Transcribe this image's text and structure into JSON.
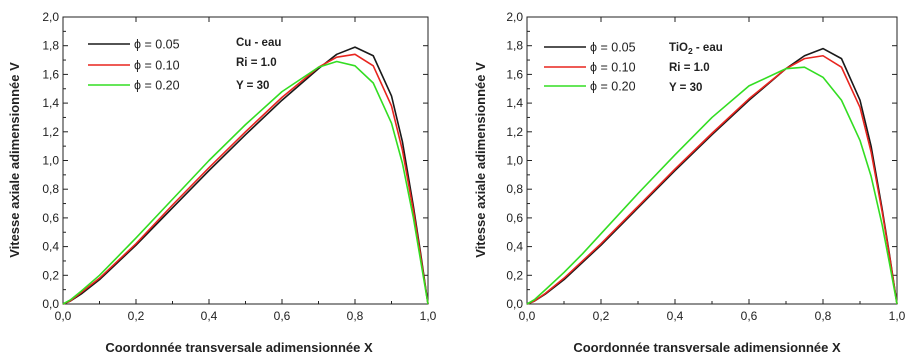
{
  "chart_data": [
    {
      "type": "line",
      "xlabel": "Coordonnée transversale adimensionnée  X",
      "ylabel": "Vitesse axiale adimensionnée  V",
      "xlim": [
        0.0,
        1.0
      ],
      "ylim": [
        0.0,
        2.0
      ],
      "x_ticks": [
        "0,0",
        "0,2",
        "0,4",
        "0,6",
        "0,8",
        "1,0"
      ],
      "y_ticks": [
        "0,0",
        "0,2",
        "0,4",
        "0,6",
        "0,8",
        "1,0",
        "1,2",
        "1,4",
        "1,6",
        "1,8",
        "2,0"
      ],
      "annotations": [
        "Cu - eau",
        "Ri = 1.0",
        "Y = 30"
      ],
      "legend_position": "top-left",
      "series": [
        {
          "name": "ϕ = 0.05",
          "color": "#1a1a1a",
          "x": [
            0,
            0.02,
            0.05,
            0.1,
            0.15,
            0.2,
            0.3,
            0.4,
            0.5,
            0.6,
            0.7,
            0.75,
            0.8,
            0.85,
            0.9,
            0.93,
            0.96,
            0.98,
            1.0
          ],
          "y": [
            0,
            0.02,
            0.07,
            0.17,
            0.29,
            0.41,
            0.67,
            0.93,
            1.18,
            1.42,
            1.64,
            1.74,
            1.79,
            1.73,
            1.45,
            1.13,
            0.68,
            0.35,
            0
          ]
        },
        {
          "name": "ϕ = 0.10",
          "color": "#e8251f",
          "x": [
            0,
            0.02,
            0.05,
            0.1,
            0.15,
            0.2,
            0.3,
            0.4,
            0.5,
            0.6,
            0.7,
            0.75,
            0.8,
            0.85,
            0.9,
            0.93,
            0.96,
            0.98,
            1.0
          ],
          "y": [
            0,
            0.022,
            0.08,
            0.18,
            0.3,
            0.42,
            0.69,
            0.95,
            1.2,
            1.44,
            1.65,
            1.72,
            1.74,
            1.66,
            1.38,
            1.07,
            0.65,
            0.33,
            0
          ]
        },
        {
          "name": "ϕ = 0.20",
          "color": "#33dd22",
          "x": [
            0,
            0.02,
            0.05,
            0.1,
            0.15,
            0.2,
            0.3,
            0.4,
            0.5,
            0.6,
            0.7,
            0.75,
            0.8,
            0.85,
            0.9,
            0.93,
            0.96,
            0.98,
            1.0
          ],
          "y": [
            0,
            0.028,
            0.09,
            0.2,
            0.33,
            0.46,
            0.73,
            1.0,
            1.25,
            1.48,
            1.65,
            1.69,
            1.66,
            1.54,
            1.26,
            0.98,
            0.6,
            0.3,
            0
          ]
        }
      ]
    },
    {
      "type": "line",
      "xlabel": "Coordonnée transversale adimensionnée  X",
      "ylabel": "Vitesse axiale adimensionnée  V",
      "xlim": [
        0.0,
        1.0
      ],
      "ylim": [
        0.0,
        2.0
      ],
      "x_ticks": [
        "0,0",
        "0,2",
        "0,4",
        "0,6",
        "0,8",
        "1,0"
      ],
      "y_ticks": [
        "0,0",
        "0,2",
        "0,4",
        "0,6",
        "0,8",
        "1,0",
        "1,2",
        "1,4",
        "1,6",
        "1,8",
        "2,0"
      ],
      "annotations": [
        "TiO",
        "2",
        " - eau",
        "Ri = 1.0",
        "Y = 30"
      ],
      "legend_position": "top-left",
      "series": [
        {
          "name": "ϕ = 0.05",
          "color": "#1a1a1a",
          "x": [
            0,
            0.02,
            0.05,
            0.1,
            0.15,
            0.2,
            0.3,
            0.4,
            0.5,
            0.6,
            0.7,
            0.75,
            0.8,
            0.85,
            0.9,
            0.93,
            0.96,
            0.98,
            1.0
          ],
          "y": [
            0,
            0.02,
            0.07,
            0.17,
            0.29,
            0.41,
            0.67,
            0.93,
            1.18,
            1.42,
            1.64,
            1.73,
            1.78,
            1.71,
            1.42,
            1.1,
            0.66,
            0.34,
            0
          ]
        },
        {
          "name": "ϕ = 0.10",
          "color": "#e8251f",
          "x": [
            0,
            0.02,
            0.05,
            0.1,
            0.15,
            0.2,
            0.3,
            0.4,
            0.5,
            0.6,
            0.7,
            0.75,
            0.8,
            0.85,
            0.9,
            0.93,
            0.96,
            0.98,
            1.0
          ],
          "y": [
            0,
            0.021,
            0.075,
            0.18,
            0.3,
            0.42,
            0.68,
            0.94,
            1.19,
            1.43,
            1.64,
            1.71,
            1.73,
            1.65,
            1.37,
            1.06,
            0.64,
            0.33,
            0
          ]
        },
        {
          "name": "ϕ = 0.20",
          "color": "#33dd22",
          "x": [
            0,
            0.02,
            0.05,
            0.1,
            0.15,
            0.2,
            0.3,
            0.4,
            0.5,
            0.6,
            0.7,
            0.75,
            0.8,
            0.85,
            0.9,
            0.93,
            0.96,
            0.98,
            1.0
          ],
          "y": [
            0,
            0.03,
            0.1,
            0.22,
            0.35,
            0.49,
            0.77,
            1.04,
            1.3,
            1.52,
            1.64,
            1.65,
            1.58,
            1.42,
            1.14,
            0.89,
            0.55,
            0.28,
            0
          ]
        }
      ]
    }
  ]
}
